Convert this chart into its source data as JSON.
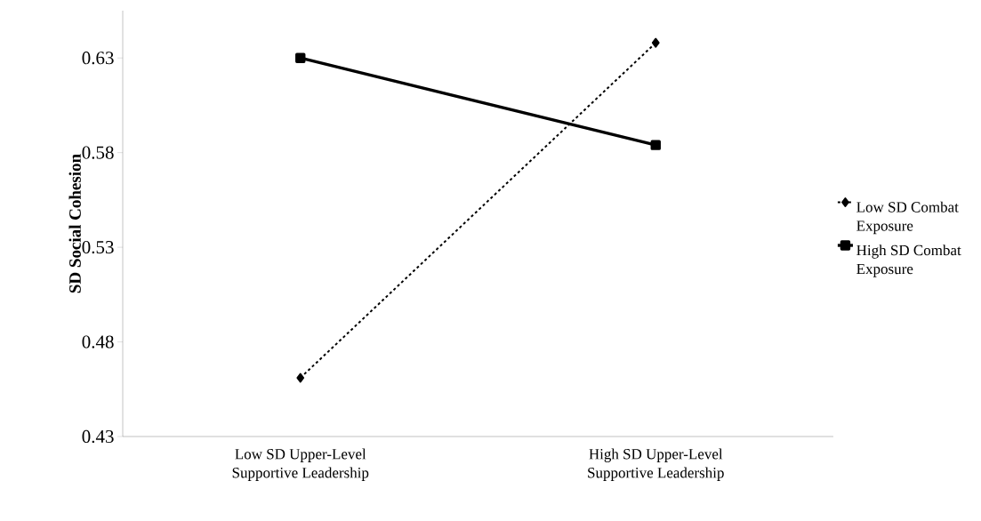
{
  "chart_data": {
    "type": "line",
    "ylabel": "SD Social Cohesion",
    "categories": [
      "Low SD Upper-Level Supportive Leadership",
      "High SD Upper-Level Supportive Leadership"
    ],
    "series": [
      {
        "name": "Low SD Combat Exposure",
        "color": "#000000",
        "values": [
          0.461,
          0.638
        ],
        "marker": "diamond",
        "line_style": "dashed"
      },
      {
        "name": "High SD Combat Exposure",
        "color": "#000000",
        "values": [
          0.63,
          0.584
        ],
        "marker": "square",
        "line_style": "solid"
      }
    ],
    "ylim": [
      0.43,
      0.655
    ],
    "yticks": [
      0.43,
      0.48,
      0.53,
      0.58,
      0.63
    ],
    "grid": false,
    "legend": "right"
  }
}
